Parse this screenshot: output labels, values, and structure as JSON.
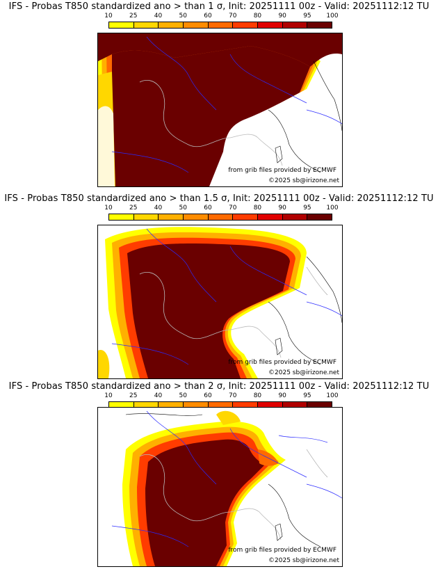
{
  "legend": {
    "ticks": [
      "10",
      "25",
      "40",
      "50",
      "60",
      "70",
      "80",
      "90",
      "95",
      "100"
    ],
    "colors": [
      "#ffff00",
      "#ffd700",
      "#ffb000",
      "#ff8c00",
      "#ff6a00",
      "#ff3c00",
      "#e00000",
      "#b00000",
      "#6a0000"
    ]
  },
  "panels": [
    {
      "title": "IFS - Probas T850  standardized ano > than 1 σ, Init: 20251111 00z - Valid: 20251112:12 TU",
      "credit": "from grib files provided by ECMWF",
      "copyright": "©2025 sb@irizone.net"
    },
    {
      "title": "IFS - Probas T850  standardized ano > than 1.5 σ, Init: 20251111 00z - Valid: 20251112:12 TU",
      "credit": "from grib files provided by ECMWF",
      "copyright": "©2025 sb@irizone.net"
    },
    {
      "title": "IFS - Probas T850  standardized ano > than 2 σ, Init: 20251111 00z - Valid: 20251112:12 TU",
      "credit": "from grib files provided by ECMWF",
      "copyright": "©2025 sb@irizone.net"
    }
  ]
}
